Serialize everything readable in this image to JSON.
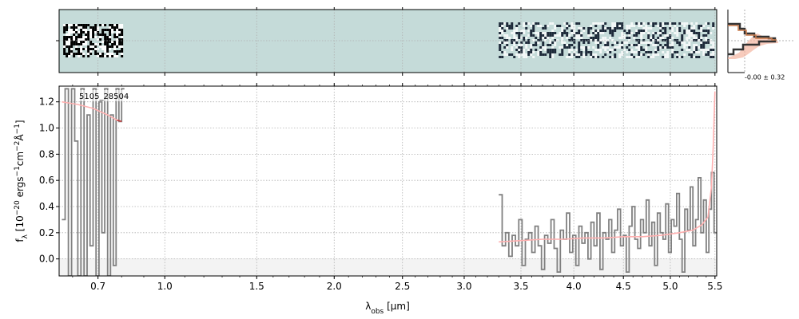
{
  "chart_data": {
    "type": "line",
    "object_label": "5105_28504",
    "xlabel": "λ_obs [μm]",
    "ylabel": "f_λ [10^−20 ergs^−1cm^−2Å^−1]",
    "xlim": [
      0.55,
      5.52
    ],
    "ylim": [
      -0.13,
      1.32
    ],
    "x_scale": "power-law, exponent 0.5 (tick labels are wavelength in μm)",
    "x_ticks": [
      "0.7",
      "1.0",
      "1.5",
      "2.0",
      "2.5",
      "3.0",
      "3.5",
      "4.0",
      "4.5",
      "5.0",
      "5.5"
    ],
    "y_ticks": [
      "0.0",
      "0.2",
      "0.4",
      "0.6",
      "0.8",
      "1.0",
      "1.2"
    ],
    "grid": true,
    "colors": {
      "data": "#808080",
      "model": "#ffb0b0",
      "model_dark": "#c04040",
      "panel_bg": "#c5dbd9",
      "hist_line": "#333333",
      "hist_accent": "#c97a4a"
    },
    "series": [
      {
        "kind": "steps",
        "color": "#808080",
        "x": [
          0.56,
          0.572,
          0.584,
          0.596,
          0.608,
          0.62,
          0.632,
          0.644,
          0.656,
          0.668,
          0.68,
          0.692,
          0.704,
          0.716,
          0.728,
          0.74,
          0.752,
          0.764,
          0.776,
          0.788,
          0.8
        ],
        "y": [
          0.3,
          1.3,
          -0.13,
          1.3,
          0.9,
          -0.13,
          1.3,
          -0.13,
          1.1,
          0.1,
          1.3,
          -0.13,
          1.2,
          0.2,
          1.3,
          -0.13,
          1.1,
          -0.05,
          1.3,
          1.05,
          1.3
        ]
      },
      {
        "kind": "steps",
        "color": "#808080",
        "x": [
          3.3,
          3.33,
          3.36,
          3.39,
          3.42,
          3.45,
          3.48,
          3.51,
          3.54,
          3.57,
          3.6,
          3.63,
          3.66,
          3.69,
          3.72,
          3.75,
          3.78,
          3.81,
          3.84,
          3.87,
          3.9,
          3.93,
          3.96,
          3.99,
          4.02,
          4.05,
          4.08,
          4.11,
          4.14,
          4.17,
          4.2,
          4.23,
          4.26,
          4.29,
          4.32,
          4.35,
          4.38,
          4.41,
          4.44,
          4.47,
          4.5,
          4.53,
          4.56,
          4.59,
          4.62,
          4.65,
          4.68,
          4.71,
          4.74,
          4.77,
          4.8,
          4.83,
          4.86,
          4.89,
          4.92,
          4.95,
          4.98,
          5.01,
          5.04,
          5.07,
          5.1,
          5.13,
          5.16,
          5.19,
          5.22,
          5.25,
          5.28,
          5.31,
          5.34,
          5.37,
          5.4,
          5.43,
          5.46,
          5.49
        ],
        "y": [
          0.49,
          0.1,
          0.2,
          0.02,
          0.18,
          0.1,
          0.3,
          -0.05,
          0.15,
          0.2,
          0.05,
          0.25,
          0.1,
          -0.08,
          0.18,
          0.12,
          0.3,
          0.08,
          -0.1,
          0.22,
          0.15,
          0.35,
          0.05,
          0.18,
          -0.05,
          0.25,
          0.12,
          0.2,
          0.0,
          0.28,
          0.1,
          0.35,
          -0.08,
          0.2,
          0.15,
          0.3,
          0.05,
          0.22,
          0.38,
          0.1,
          0.18,
          -0.1,
          0.25,
          0.4,
          0.15,
          0.08,
          0.3,
          0.2,
          0.45,
          0.1,
          0.28,
          -0.05,
          0.35,
          0.2,
          0.15,
          0.42,
          0.05,
          0.3,
          0.25,
          0.5,
          0.15,
          -0.1,
          0.38,
          0.22,
          0.55,
          0.1,
          0.3,
          0.62,
          0.2,
          0.45,
          0.05,
          0.38,
          0.66,
          0.2
        ]
      },
      {
        "kind": "line",
        "color": "#ffb0b0",
        "x": [
          0.56,
          0.62,
          0.68,
          0.74,
          0.78,
          0.8,
          3.3,
          3.5,
          3.7,
          3.9,
          4.1,
          4.3,
          4.5,
          4.7,
          4.9,
          5.1,
          5.25,
          5.35,
          5.42,
          5.46,
          5.48,
          5.5
        ],
        "y": [
          1.2,
          1.18,
          1.15,
          1.1,
          1.06,
          1.05,
          0.13,
          0.14,
          0.15,
          0.15,
          0.16,
          0.16,
          0.17,
          0.17,
          0.18,
          0.2,
          0.22,
          0.26,
          0.32,
          0.55,
          0.85,
          1.28
        ]
      }
    ],
    "histogram_label": "-0.00 ± 0.32"
  }
}
